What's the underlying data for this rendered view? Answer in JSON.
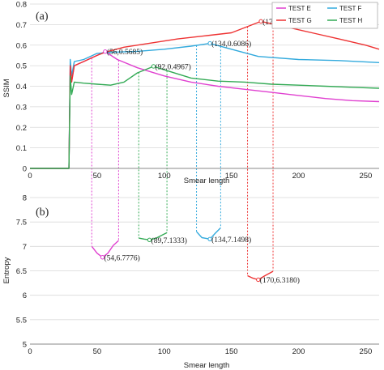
{
  "chart_data": [
    {
      "type": "line",
      "panel_label": "(a)",
      "xlabel": "Smear length",
      "ylabel": "SSIM",
      "xlim": [
        0,
        260
      ],
      "ylim": [
        0,
        0.8
      ],
      "xticks": [
        0,
        50,
        100,
        150,
        200,
        250
      ],
      "yticks": [
        0,
        0.1,
        0.2,
        0.3,
        0.4,
        0.5,
        0.6,
        0.7,
        0.8
      ],
      "xtick_labels": [
        "0",
        "50",
        "100",
        "150",
        "200",
        "250"
      ],
      "ytick_labels": [
        "0",
        "0.1",
        "0.2",
        "0.3",
        "0.4",
        "0.5",
        "0.6",
        "0.7",
        "0.8"
      ],
      "legend_position": "top-right",
      "series": [
        {
          "name": "TEST E",
          "color": "#e040d0",
          "x": [
            0,
            29,
            30,
            31,
            33,
            40,
            50,
            56,
            65,
            80,
            100,
            120,
            140,
            160,
            180,
            200,
            220,
            240,
            260
          ],
          "y": [
            0,
            0,
            0.5,
            0.42,
            0.5,
            0.52,
            0.55,
            0.5685,
            0.53,
            0.49,
            0.45,
            0.42,
            0.4,
            0.385,
            0.37,
            0.355,
            0.34,
            0.33,
            0.325
          ]
        },
        {
          "name": "TEST F",
          "color": "#33aadd",
          "x": [
            0,
            29,
            30,
            31,
            33,
            40,
            50,
            60,
            80,
            100,
            120,
            134,
            150,
            170,
            200,
            230,
            260
          ],
          "y": [
            0,
            0,
            0.53,
            0.45,
            0.52,
            0.53,
            0.56,
            0.565,
            0.57,
            0.58,
            0.595,
            0.6086,
            0.58,
            0.545,
            0.53,
            0.525,
            0.515
          ]
        },
        {
          "name": "TEST G",
          "color": "#ee3333",
          "x": [
            0,
            29,
            30,
            31,
            33,
            40,
            50,
            56,
            70,
            90,
            110,
            130,
            150,
            172,
            190,
            210,
            230,
            250,
            260
          ],
          "y": [
            0,
            0,
            0.5,
            0.42,
            0.5,
            0.52,
            0.55,
            0.565,
            0.59,
            0.61,
            0.63,
            0.645,
            0.66,
            0.7158,
            0.69,
            0.66,
            0.63,
            0.6,
            0.58
          ]
        },
        {
          "name": "TEST H",
          "color": "#33aa55",
          "x": [
            0,
            29,
            30,
            31,
            33,
            40,
            50,
            60,
            70,
            80,
            92,
            100,
            120,
            140,
            160,
            180,
            200,
            220,
            240,
            260
          ],
          "y": [
            0,
            0,
            0.45,
            0.36,
            0.42,
            0.415,
            0.41,
            0.405,
            0.42,
            0.465,
            0.4967,
            0.48,
            0.44,
            0.425,
            0.42,
            0.41,
            0.405,
            0.4,
            0.395,
            0.39
          ]
        }
      ],
      "annotations": [
        {
          "text": "(56,0.5685)",
          "x": 56,
          "y": 0.5685,
          "color": "#e040d0"
        },
        {
          "text": "(92,0.4967)",
          "x": 92,
          "y": 0.4967,
          "color": "#33aa55"
        },
        {
          "text": "(134,0.6086)",
          "x": 134,
          "y": 0.6086,
          "color": "#33aadd"
        },
        {
          "text": "(172,0.7158)",
          "x": 172,
          "y": 0.7158,
          "color": "#ee3333"
        }
      ]
    },
    {
      "type": "line",
      "panel_label": "(b)",
      "xlabel": "Smear length",
      "ylabel": "Entropy",
      "xlim": [
        0,
        260
      ],
      "ylim": [
        5,
        8
      ],
      "xticks": [
        0,
        50,
        100,
        150,
        200,
        250
      ],
      "yticks": [
        5,
        5.5,
        6,
        6.5,
        7,
        7.5,
        8
      ],
      "xtick_labels": [
        "0",
        "50",
        "100",
        "150",
        "200",
        "250"
      ],
      "ytick_labels": [
        "5",
        "5.5",
        "6",
        "6.5",
        "7",
        "7.5",
        "8"
      ],
      "series": [
        {
          "name": "TEST E",
          "color": "#e040d0",
          "x": [
            46,
            50,
            54,
            58,
            62,
            66
          ],
          "y": [
            7.0,
            6.86,
            6.7776,
            6.86,
            7.02,
            7.12
          ]
        },
        {
          "name": "TEST H",
          "color": "#33aa55",
          "x": [
            81,
            85,
            89,
            94,
            99,
            102
          ],
          "y": [
            7.17,
            7.15,
            7.1333,
            7.17,
            7.24,
            7.28
          ]
        },
        {
          "name": "TEST F",
          "color": "#33aadd",
          "x": [
            124,
            128,
            134,
            138,
            142
          ],
          "y": [
            7.3,
            7.18,
            7.1498,
            7.27,
            7.38
          ]
        },
        {
          "name": "TEST G",
          "color": "#ee3333",
          "x": [
            162,
            166,
            170,
            175,
            181
          ],
          "y": [
            6.4,
            6.35,
            6.318,
            6.4,
            6.49
          ]
        }
      ],
      "annotations": [
        {
          "text": "(54,6.7776)",
          "x": 54,
          "y": 6.7776,
          "color": "#e040d0"
        },
        {
          "text": "(89,7.1333)",
          "x": 89,
          "y": 7.1333,
          "color": "#33aa55"
        },
        {
          "text": "(134,7.1498)",
          "x": 134,
          "y": 7.1498,
          "color": "#33aadd"
        },
        {
          "text": "(170,6.3180)",
          "x": 170,
          "y": 6.318,
          "color": "#ee3333"
        }
      ]
    }
  ]
}
